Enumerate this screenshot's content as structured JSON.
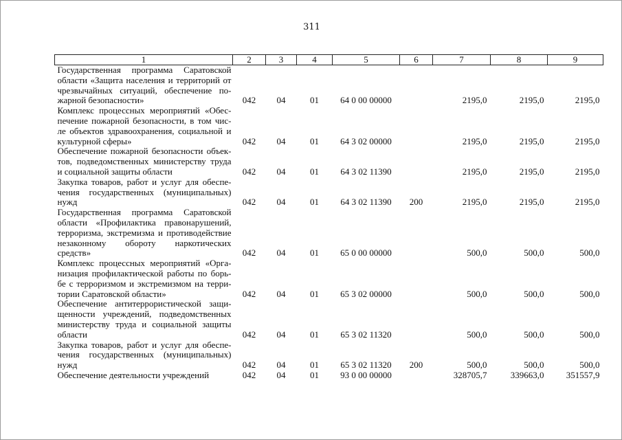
{
  "page_number": "311",
  "headers": [
    "1",
    "2",
    "3",
    "4",
    "5",
    "6",
    "7",
    "8",
    "9"
  ],
  "rows": [
    {
      "lines": [
        "Государственная программа Саратовской",
        "области «Защита населения и территорий от",
        "чрезвычайных ситуаций, обеспечение по-",
        "жарной безопасности»"
      ],
      "c2": "042",
      "c3": "04",
      "c4": "01",
      "c5": "64 0 00 00000",
      "c6": "",
      "c7": "2195,0",
      "c8": "2195,0",
      "c9": "2195,0"
    },
    {
      "lines": [
        "Комплекс процессных мероприятий «Обес-",
        "печение пожарной безопасности, в том чис-",
        "ле объектов здравоохранения, социальной и",
        "культурной сферы»"
      ],
      "c2": "042",
      "c3": "04",
      "c4": "01",
      "c5": "64 3 02 00000",
      "c6": "",
      "c7": "2195,0",
      "c8": "2195,0",
      "c9": "2195,0"
    },
    {
      "lines": [
        "Обеспечение пожарной безопасности объек-",
        "тов, подведомственных министерству труда",
        "и социальной защиты области"
      ],
      "c2": "042",
      "c3": "04",
      "c4": "01",
      "c5": "64 3 02 11390",
      "c6": "",
      "c7": "2195,0",
      "c8": "2195,0",
      "c9": "2195,0"
    },
    {
      "lines": [
        "Закупка товаров, работ и услуг для обеспе-",
        "чения государственных (муниципальных)",
        "нужд"
      ],
      "c2": "042",
      "c3": "04",
      "c4": "01",
      "c5": "64 3 02 11390",
      "c6": "200",
      "c7": "2195,0",
      "c8": "2195,0",
      "c9": "2195,0"
    },
    {
      "lines": [
        "Государственная программа Саратовской",
        "области «Профилактика правонарушений,",
        "терроризма, экстремизма и противодействие",
        "незаконному обороту наркотических",
        "средств»"
      ],
      "c2": "042",
      "c3": "04",
      "c4": "01",
      "c5": "65 0 00 00000",
      "c6": "",
      "c7": "500,0",
      "c8": "500,0",
      "c9": "500,0"
    },
    {
      "lines": [
        "Комплекс процессных мероприятий «Орга-",
        "низация профилактической работы по борь-",
        "бе с терроризмом и экстремизмом на терри-",
        "тории Саратовской области»"
      ],
      "c2": "042",
      "c3": "04",
      "c4": "01",
      "c5": "65 3 02 00000",
      "c6": "",
      "c7": "500,0",
      "c8": "500,0",
      "c9": "500,0"
    },
    {
      "lines": [
        "Обеспечение антитеррористической защи-",
        "щенности учреждений, подведомственных",
        "министерству труда и социальной защиты",
        "области"
      ],
      "c2": "042",
      "c3": "04",
      "c4": "01",
      "c5": "65 3 02 11320",
      "c6": "",
      "c7": "500,0",
      "c8": "500,0",
      "c9": "500,0"
    },
    {
      "lines": [
        "Закупка товаров, работ и услуг для обеспе-",
        "чения государственных (муниципальных)",
        "нужд"
      ],
      "c2": "042",
      "c3": "04",
      "c4": "01",
      "c5": "65 3 02 11320",
      "c6": "200",
      "c7": "500,0",
      "c8": "500,0",
      "c9": "500,0"
    },
    {
      "lines": [
        "Обеспечение деятельности учреждений"
      ],
      "c2": "042",
      "c3": "04",
      "c4": "01",
      "c5": "93 0 00 00000",
      "c6": "",
      "c7": "328705,7",
      "c8": "339663,0",
      "c9": "351557,9"
    }
  ]
}
